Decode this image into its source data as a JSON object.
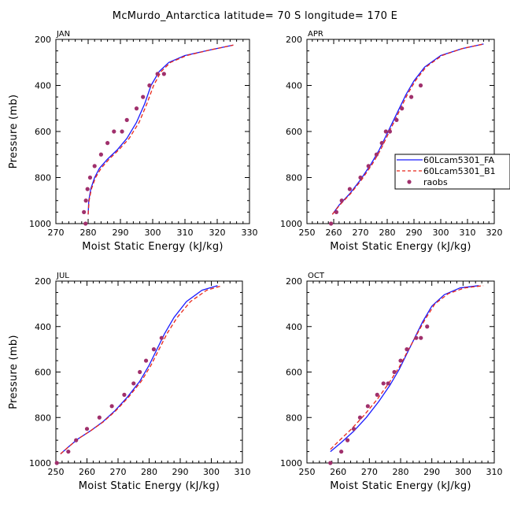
{
  "figure_title": "McMurdo_Antarctica  latitude= 70 S longitude= 170 E",
  "colors": {
    "series1": "#1a1aff",
    "series2": "#e8261a",
    "raobs": "#a0306c"
  },
  "legend": [
    "60Lcam5301_FA",
    "60Lcam5301_B1",
    "raobs"
  ],
  "chart_data": [
    {
      "type": "line",
      "panel": "JAN",
      "xlabel": "Moist Static Energy (kJ/kg)",
      "ylabel": "Pressure (mb)",
      "xlim": [
        270,
        330
      ],
      "ylim": [
        1000,
        200
      ],
      "xticks": [
        270,
        280,
        290,
        300,
        310,
        320,
        330
      ],
      "yticks": [
        200,
        400,
        600,
        800,
        1000
      ],
      "series": [
        {
          "name": "60Lcam5301_FA",
          "x": [
            280,
            280.2,
            280.8,
            282,
            283.5,
            286,
            289,
            292,
            295,
            297.5,
            299.5,
            302,
            305,
            310,
            318,
            325
          ],
          "y": [
            960,
            900,
            850,
            800,
            760,
            720,
            680,
            630,
            560,
            480,
            400,
            340,
            300,
            270,
            245,
            225
          ]
        },
        {
          "name": "60Lcam5301_B1",
          "x": [
            280,
            280.3,
            281,
            282.3,
            284,
            286.5,
            289.5,
            292.7,
            295.8,
            298.2,
            300.3,
            302.6,
            305.5,
            310.5,
            318,
            325
          ],
          "y": [
            960,
            900,
            850,
            800,
            760,
            720,
            680,
            630,
            560,
            480,
            400,
            340,
            300,
            270,
            245,
            225
          ]
        },
        {
          "name": "raobs",
          "x": [
            279.2,
            278.7,
            279.3,
            279.8,
            280.6,
            282,
            284,
            286,
            288,
            290.5,
            292,
            295,
            297,
            299,
            301.5,
            303.5
          ],
          "y": [
            1000,
            950,
            900,
            850,
            800,
            750,
            700,
            650,
            600,
            600,
            550,
            500,
            450,
            400,
            350,
            350
          ]
        }
      ]
    },
    {
      "type": "line",
      "panel": "APR",
      "xlabel": "Moist Static Energy (kJ/kg)",
      "ylabel": "",
      "xlim": [
        250,
        320
      ],
      "ylim": [
        1000,
        200
      ],
      "xticks": [
        250,
        260,
        270,
        280,
        290,
        300,
        310,
        320
      ],
      "yticks": [
        200,
        400,
        600,
        800,
        1000
      ],
      "series": [
        {
          "name": "60Lcam5301_FA",
          "x": [
            259.5,
            262,
            266,
            270,
            274,
            277,
            279.5,
            282,
            284.5,
            287,
            290,
            294,
            300,
            308,
            316
          ],
          "y": [
            960,
            920,
            870,
            810,
            740,
            680,
            620,
            560,
            500,
            440,
            380,
            320,
            270,
            240,
            220
          ]
        },
        {
          "name": "60Lcam5301_B1",
          "x": [
            259.5,
            262.2,
            266.3,
            270.4,
            274.5,
            277.5,
            280,
            282.5,
            285,
            287.5,
            290.5,
            294.5,
            300.5,
            308,
            316
          ],
          "y": [
            960,
            920,
            870,
            810,
            740,
            680,
            620,
            560,
            500,
            440,
            380,
            320,
            270,
            240,
            220
          ]
        },
        {
          "name": "raobs",
          "x": [
            259,
            261,
            263,
            266,
            270,
            273,
            276,
            278,
            279.5,
            281,
            283.5,
            285.5,
            289,
            292.5
          ],
          "y": [
            1000,
            950,
            900,
            850,
            800,
            750,
            700,
            650,
            600,
            600,
            550,
            500,
            450,
            400
          ]
        }
      ]
    },
    {
      "type": "line",
      "panel": "JUL",
      "xlabel": "Moist Static Energy (kJ/kg)",
      "ylabel": "Pressure (mb)",
      "xlim": [
        250,
        310
      ],
      "ylim": [
        1000,
        200
      ],
      "xticks": [
        250,
        260,
        270,
        280,
        290,
        300,
        310
      ],
      "yticks": [
        200,
        400,
        600,
        800,
        1000
      ],
      "series": [
        {
          "name": "60Lcam5301_FA",
          "x": [
            251.5,
            254,
            257,
            261,
            265,
            269,
            273,
            277,
            280,
            282.5,
            285,
            288,
            292,
            297,
            302
          ],
          "y": [
            960,
            930,
            895,
            860,
            820,
            770,
            710,
            640,
            570,
            500,
            430,
            360,
            290,
            240,
            220
          ]
        },
        {
          "name": "60Lcam5301_B1",
          "x": [
            251.5,
            254,
            257,
            261,
            265.2,
            269.3,
            273.4,
            277.5,
            280.6,
            283.2,
            285.8,
            289,
            293.3,
            298.5,
            303.5
          ],
          "y": [
            960,
            930,
            895,
            860,
            820,
            770,
            710,
            640,
            570,
            500,
            430,
            360,
            290,
            240,
            220
          ]
        },
        {
          "name": "raobs",
          "x": [
            250.3,
            254,
            256.5,
            260,
            264,
            268,
            272,
            275,
            277,
            279,
            281.5,
            284
          ],
          "y": [
            1000,
            950,
            900,
            850,
            800,
            750,
            700,
            650,
            600,
            550,
            500,
            450
          ]
        }
      ]
    },
    {
      "type": "line",
      "panel": "OCT",
      "xlabel": "Moist Static Energy (kJ/kg)",
      "ylabel": "",
      "xlim": [
        250,
        310
      ],
      "ylim": [
        1000,
        200
      ],
      "xticks": [
        250,
        260,
        270,
        280,
        290,
        300,
        310
      ],
      "yticks": [
        200,
        400,
        600,
        800,
        1000
      ],
      "series": [
        {
          "name": "60Lcam5301_FA",
          "x": [
            257.5,
            261,
            265,
            269,
            273,
            276.5,
            279.5,
            282,
            284.5,
            287,
            290,
            294,
            299,
            305
          ],
          "y": [
            950,
            910,
            860,
            800,
            730,
            660,
            590,
            520,
            450,
            380,
            310,
            260,
            230,
            220
          ]
        },
        {
          "name": "60Lcam5301_B1",
          "x": [
            257.5,
            260.5,
            264.3,
            268.3,
            272.5,
            276.2,
            279.5,
            282.2,
            285,
            287.8,
            291,
            295.3,
            300.5,
            306.5
          ],
          "y": [
            940,
            900,
            850,
            790,
            720,
            650,
            580,
            510,
            440,
            370,
            300,
            255,
            230,
            220
          ]
        },
        {
          "name": "raobs",
          "x": [
            257.5,
            261,
            263,
            265,
            267,
            269.5,
            272.5,
            274.5,
            276,
            278,
            280,
            282,
            285,
            286.5,
            288.5
          ],
          "y": [
            1000,
            950,
            900,
            850,
            800,
            750,
            700,
            650,
            650,
            600,
            550,
            500,
            450,
            450,
            400
          ]
        }
      ]
    }
  ]
}
